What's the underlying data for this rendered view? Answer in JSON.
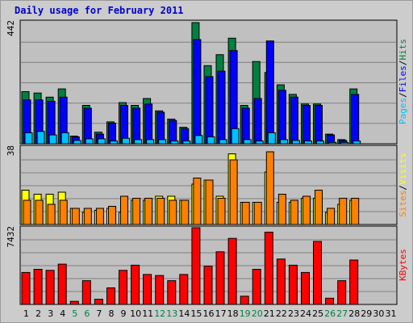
{
  "title": "Daily usage for February 2011",
  "chart_data": [
    {
      "type": "bar",
      "panel": "pages-files-hits",
      "scale_label": "442",
      "ylim": [
        0,
        442
      ],
      "grid": true,
      "side_labels": [
        "Pages",
        "Files",
        "Hits"
      ],
      "side_label_separator": "/",
      "categories": [
        "1",
        "2",
        "3",
        "4",
        "5",
        "6",
        "7",
        "8",
        "9",
        "10",
        "11",
        "12",
        "13",
        "14",
        "15",
        "16",
        "17",
        "18",
        "19",
        "20",
        "21",
        "22",
        "23",
        "24",
        "25",
        "26",
        "27",
        "28",
        "29",
        "30",
        "31"
      ],
      "series": [
        {
          "name": "Hits",
          "color": "#008040",
          "values": [
            190,
            185,
            170,
            200,
            28,
            140,
            42,
            80,
            150,
            140,
            165,
            120,
            90,
            60,
            442,
            285,
            325,
            385,
            140,
            300,
            260,
            215,
            180,
            145,
            145,
            35,
            15,
            200,
            0,
            0,
            0
          ]
        },
        {
          "name": "Files",
          "color": "#0000ff",
          "values": [
            160,
            160,
            155,
            170,
            25,
            130,
            35,
            75,
            140,
            130,
            145,
            115,
            85,
            55,
            380,
            245,
            265,
            340,
            130,
            165,
            375,
            195,
            170,
            140,
            140,
            32,
            12,
            180,
            0,
            0,
            0
          ]
        },
        {
          "name": "Pages",
          "color": "#00c0ff",
          "values": [
            40,
            45,
            32,
            40,
            12,
            18,
            18,
            10,
            20,
            15,
            15,
            15,
            10,
            10,
            30,
            25,
            15,
            55,
            15,
            10,
            40,
            15,
            12,
            10,
            10,
            5,
            5,
            10,
            0,
            0,
            0
          ]
        }
      ]
    },
    {
      "type": "bar",
      "panel": "visits-sites",
      "scale_label": "38",
      "ylim": [
        0,
        38
      ],
      "grid": true,
      "side_labels": [
        "Sites",
        "Visits"
      ],
      "side_label_separator": "/",
      "categories": [
        "1",
        "2",
        "3",
        "4",
        "5",
        "6",
        "7",
        "8",
        "9",
        "10",
        "11",
        "12",
        "13",
        "14",
        "15",
        "16",
        "17",
        "18",
        "19",
        "20",
        "21",
        "22",
        "23",
        "24",
        "25",
        "26",
        "27",
        "28",
        "29",
        "30",
        "31"
      ],
      "series": [
        {
          "name": "Visits",
          "color": "#ffff00",
          "values": [
            17,
            15,
            15,
            16,
            8,
            6,
            7,
            8,
            6,
            12,
            12,
            14,
            14,
            12,
            20,
            22,
            14,
            35,
            11,
            11,
            26,
            11,
            11,
            13,
            13,
            6,
            10,
            12,
            0,
            0,
            0
          ]
        },
        {
          "name": "Sites",
          "color": "#ff8000",
          "values": [
            12,
            12,
            10,
            12,
            8,
            8,
            8,
            9,
            14,
            13,
            13,
            13,
            12,
            12,
            23,
            22,
            13,
            32,
            11,
            11,
            36,
            15,
            12,
            14,
            17,
            8,
            13,
            13,
            0,
            0,
            0
          ]
        }
      ]
    },
    {
      "type": "bar",
      "panel": "kbytes",
      "scale_label": "7432",
      "ylim": [
        0,
        7432
      ],
      "grid": true,
      "side_labels": [
        "KBytes"
      ],
      "side_label_separator": "",
      "categories": [
        "1",
        "2",
        "3",
        "4",
        "5",
        "6",
        "7",
        "8",
        "9",
        "10",
        "11",
        "12",
        "13",
        "14",
        "15",
        "16",
        "17",
        "18",
        "19",
        "20",
        "21",
        "22",
        "23",
        "24",
        "25",
        "26",
        "27",
        "28",
        "29",
        "30",
        "31"
      ],
      "series": [
        {
          "name": "KBytes",
          "color": "#ff0000",
          "values": [
            3100,
            3400,
            3300,
            3900,
            300,
            2300,
            500,
            1600,
            3300,
            3800,
            2900,
            2800,
            2300,
            2900,
            7432,
            3700,
            5100,
            6400,
            800,
            3400,
            7000,
            4400,
            3800,
            3100,
            6100,
            600,
            2300,
            4300,
            0,
            0,
            0
          ]
        }
      ]
    }
  ],
  "day_label_colors": [
    "#000000",
    "#000000",
    "#000000",
    "#000000",
    "#008040",
    "#008040",
    "#000000",
    "#000000",
    "#000000",
    "#000000",
    "#000000",
    "#008040",
    "#008040",
    "#000000",
    "#000000",
    "#000000",
    "#000000",
    "#000000",
    "#008040",
    "#008040",
    "#000000",
    "#000000",
    "#000000",
    "#000000",
    "#000000",
    "#008040",
    "#008040",
    "#000000",
    "#000000",
    "#000000",
    "#000000"
  ]
}
